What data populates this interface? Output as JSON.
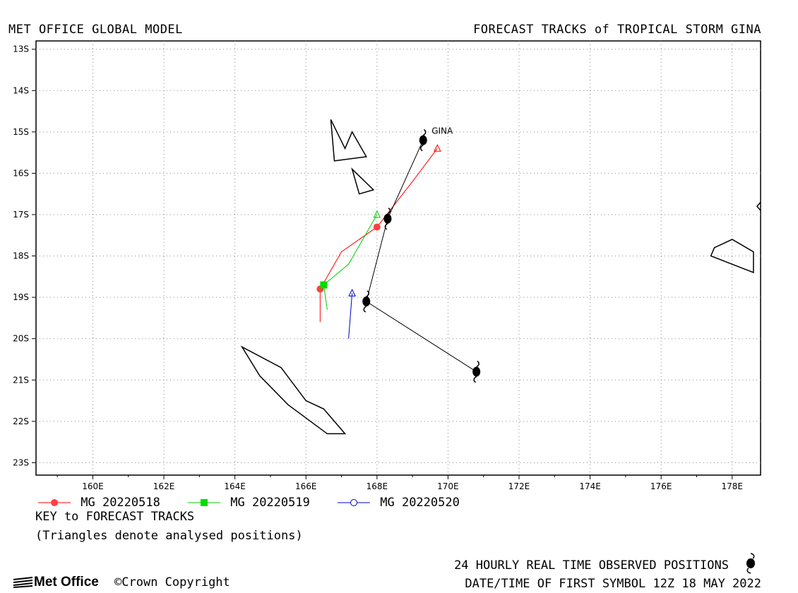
{
  "header": {
    "left": "MET OFFICE GLOBAL MODEL",
    "right": "FORECAST TRACKS of TROPICAL STORM GINA"
  },
  "map": {
    "lon_range": [
      158.4,
      178.8
    ],
    "lat_range": [
      -23.3,
      -12.8
    ],
    "x_ticks": [
      "160E",
      "162E",
      "164E",
      "166E",
      "168E",
      "170E",
      "172E",
      "174E",
      "176E",
      "178E"
    ],
    "y_ticks": [
      "13S",
      "14S",
      "15S",
      "16S",
      "17S",
      "18S",
      "19S",
      "20S",
      "21S",
      "22S",
      "23S"
    ],
    "grid": "dotted",
    "storm_label": "GINA",
    "observed_track": [
      {
        "lon": 169.3,
        "lat": -15.2
      },
      {
        "lon": 168.3,
        "lat": -17.1
      },
      {
        "lon": 167.7,
        "lat": -19.1
      },
      {
        "lon": 170.8,
        "lat": -20.8
      }
    ],
    "observed_color": "#000000",
    "land": [
      [
        [
          166.7,
          -14.7
        ],
        [
          167.1,
          -15.4
        ],
        [
          167.3,
          -15.0
        ],
        [
          167.7,
          -15.6
        ],
        [
          166.8,
          -15.7
        ],
        [
          166.7,
          -14.7
        ]
      ],
      [
        [
          167.3,
          -15.9
        ],
        [
          167.9,
          -16.4
        ],
        [
          167.5,
          -16.5
        ],
        [
          167.3,
          -15.9
        ]
      ],
      [
        [
          164.2,
          -20.2
        ],
        [
          165.3,
          -20.7
        ],
        [
          166.0,
          -21.5
        ],
        [
          166.5,
          -21.7
        ],
        [
          167.1,
          -22.3
        ],
        [
          166.6,
          -22.3
        ],
        [
          165.5,
          -21.6
        ],
        [
          164.7,
          -20.9
        ],
        [
          164.2,
          -20.2
        ]
      ],
      [
        [
          177.5,
          -17.8
        ],
        [
          178.0,
          -17.6
        ],
        [
          178.6,
          -17.9
        ],
        [
          178.6,
          -18.4
        ],
        [
          178.0,
          -18.2
        ],
        [
          177.4,
          -18.0
        ],
        [
          177.5,
          -17.8
        ]
      ],
      [
        [
          178.7,
          -16.8
        ],
        [
          178.9,
          -16.6
        ],
        [
          178.9,
          -17.0
        ],
        [
          178.7,
          -16.8
        ]
      ]
    ]
  },
  "forecast_tracks": [
    {
      "label": "MG 20220518",
      "color": "#ff0000",
      "marker": "circle",
      "analysed": {
        "lon": 169.7,
        "lat": -15.4
      },
      "track": [
        {
          "lon": 169.7,
          "lat": -15.4
        },
        {
          "lon": 169.0,
          "lat": -16.2
        },
        {
          "lon": 168.0,
          "lat": -17.3
        },
        {
          "lon": 167.0,
          "lat": -17.9
        },
        {
          "lon": 166.4,
          "lat": -18.8
        },
        {
          "lon": 166.4,
          "lat": -19.6
        }
      ],
      "symbols": [
        {
          "lon": 168.0,
          "lat": -17.3
        },
        {
          "lon": 166.4,
          "lat": -18.8
        }
      ]
    },
    {
      "label": "MG 20220519",
      "color": "#00cc00",
      "marker": "square",
      "analysed": {
        "lon": 168.0,
        "lat": -17.0
      },
      "track": [
        {
          "lon": 168.0,
          "lat": -17.0
        },
        {
          "lon": 167.2,
          "lat": -18.2
        },
        {
          "lon": 166.5,
          "lat": -18.7
        },
        {
          "lon": 166.6,
          "lat": -19.3
        }
      ],
      "symbols": [
        {
          "lon": 166.5,
          "lat": -18.7
        }
      ]
    },
    {
      "label": "MG 20220520",
      "color": "#0000cc",
      "marker": "open-circle",
      "analysed": {
        "lon": 167.3,
        "lat": -18.9
      },
      "track": [
        {
          "lon": 167.3,
          "lat": -18.9
        },
        {
          "lon": 167.2,
          "lat": -20.0
        }
      ],
      "symbols": []
    }
  ],
  "key": {
    "title": "KEY to FORECAST TRACKS",
    "note": "(Triangles denote analysed positions)"
  },
  "footer": {
    "observed": "24 HOURLY REAL TIME OBSERVED POSITIONS",
    "datetime": "DATE/TIME OF FIRST SYMBOL 12Z 18 MAY 2022",
    "logo": "Met Office",
    "copyright": "Crown Copyright",
    "copyright_symbol": "©"
  }
}
